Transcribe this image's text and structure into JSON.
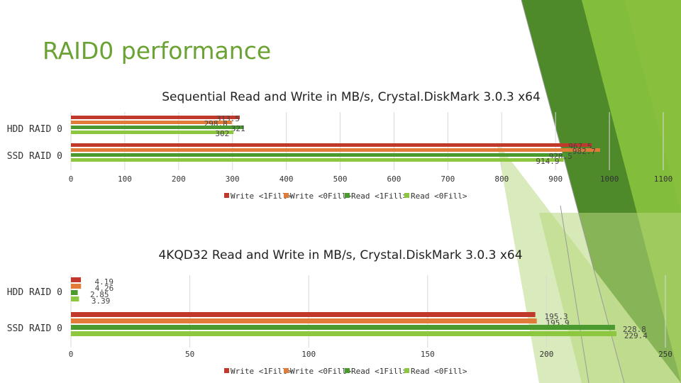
{
  "slide": {
    "title": "RAID0 performance"
  },
  "colors": {
    "write_1fill": "#c0392b",
    "write_0fill": "#e07b39",
    "read_1fill": "#4a9a2f",
    "read_0fill": "#8dc63f",
    "accent": "#6aa233"
  },
  "chart_data": [
    {
      "type": "bar",
      "orientation": "horizontal",
      "title": "Sequential Read and Write in MB/s, Crystal.DiskMark 3.0.3 x64",
      "categories": [
        "HDD RAID 0",
        "SSD RAID 0"
      ],
      "series": [
        {
          "name": "Write <1Fill>",
          "values": [
            313.5,
            967.5
          ],
          "labels": [
            "313.5",
            "967.5"
          ]
        },
        {
          "name": "Write <0Fill>",
          "values": [
            298.8,
            982.7
          ],
          "labels": [
            "298.8",
            "982.7"
          ]
        },
        {
          "name": "Read <1Fill>",
          "values": [
            321,
            928.5
          ],
          "labels": [
            "321",
            "928.5"
          ]
        },
        {
          "name": "Read <0Fill>",
          "values": [
            302,
            914.9
          ],
          "labels": [
            "302",
            "914.9"
          ]
        }
      ],
      "xlim": [
        0,
        1100
      ],
      "ticks": [
        "0",
        "100",
        "200",
        "300",
        "400",
        "500",
        "600",
        "700",
        "800",
        "900",
        "1000",
        "1100"
      ],
      "grid": true,
      "legend": "bottom"
    },
    {
      "type": "bar",
      "orientation": "horizontal",
      "title": "4KQD32 Read and Write in MB/s, Crystal.DiskMark 3.0.3 x64",
      "categories": [
        "HDD RAID 0",
        "SSD RAID 0"
      ],
      "series": [
        {
          "name": "Write <1Fill>",
          "values": [
            4.19,
            195.3
          ],
          "labels": [
            "4.19",
            "195.3"
          ]
        },
        {
          "name": "Write <0Fill>",
          "values": [
            4.26,
            195.9
          ],
          "labels": [
            "4.26",
            "195.9"
          ]
        },
        {
          "name": "Read <1Fill>",
          "values": [
            2.85,
            228.8
          ],
          "labels": [
            "2.85",
            "228.8"
          ]
        },
        {
          "name": "Read <0Fill>",
          "values": [
            3.39,
            229.4
          ],
          "labels": [
            "3.39",
            "229.4"
          ]
        }
      ],
      "xlim": [
        0,
        250
      ],
      "ticks": [
        "0",
        "50",
        "100",
        "150",
        "200",
        "250"
      ],
      "grid": true,
      "legend": "bottom"
    }
  ]
}
